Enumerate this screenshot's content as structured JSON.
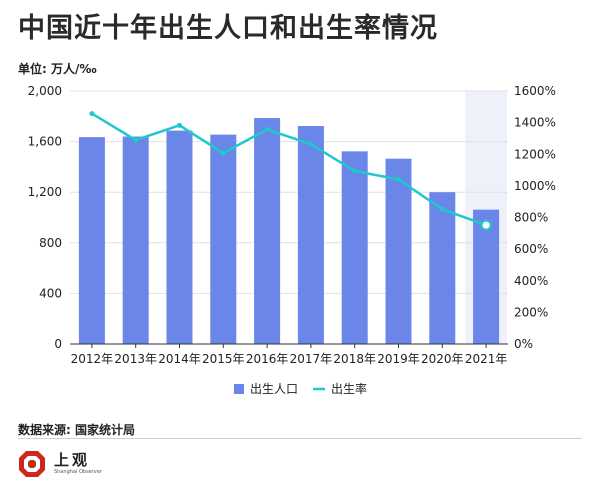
{
  "title": "中国近十年出生人口和出生率情况",
  "unit_label": "单位: 万人/‰",
  "source": "数据来源: 国家统计局",
  "logo": {
    "cn": "上观",
    "en": "Shanghai Observer"
  },
  "colors": {
    "bar": "#6a86e8",
    "line": "#1ec8cc",
    "highlight": "#eef1f9",
    "grid": "#e2e2e2",
    "axis": "#333333"
  },
  "chart_data": {
    "type": "bar",
    "title": "中国近十年出生人口和出生率情况",
    "categories": [
      "2012年",
      "2013年",
      "2014年",
      "2015年",
      "2016年",
      "2017年",
      "2018年",
      "2019年",
      "2020年",
      "2021年"
    ],
    "series": [
      {
        "name": "出生人口",
        "type": "bar",
        "axis": "left",
        "values": [
          1635,
          1640,
          1687,
          1655,
          1786,
          1723,
          1523,
          1465,
          1200,
          1062
        ]
      },
      {
        "name": "出生率",
        "type": "line",
        "axis": "right",
        "values": [
          1457,
          1290,
          1383,
          1207,
          1357,
          1264,
          1094,
          1041,
          852,
          752
        ]
      }
    ],
    "y_left": {
      "min": 0,
      "max": 2000,
      "ticks": [
        "0",
        "400",
        "800",
        "1,200",
        "1,600",
        "2,000"
      ],
      "tick_values": [
        0,
        400,
        800,
        1200,
        1600,
        2000
      ]
    },
    "y_right": {
      "min": 0,
      "max": 1600,
      "ticks": [
        "0%",
        "200%",
        "400%",
        "600%",
        "800%",
        "1000%",
        "1200%",
        "1400%",
        "1600%"
      ],
      "tick_values": [
        0,
        200,
        400,
        600,
        800,
        1000,
        1200,
        1400,
        1600
      ]
    },
    "highlight_category": "2021年",
    "legend": {
      "position": "bottom",
      "items": [
        "出生人口",
        "出生率"
      ]
    },
    "grid": true
  }
}
